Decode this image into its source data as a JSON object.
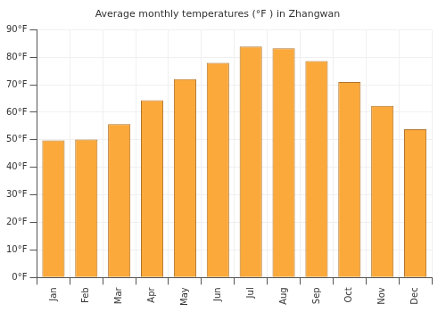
{
  "chart_data": {
    "type": "bar",
    "title": "Average monthly temperatures (°F ) in Zhangwan",
    "categories": [
      "Jan",
      "Feb",
      "Mar",
      "Apr",
      "May",
      "Jun",
      "Jul",
      "Aug",
      "Sep",
      "Oct",
      "Nov",
      "Dec"
    ],
    "values": [
      49.8,
      50.1,
      55.7,
      64.3,
      72,
      77.9,
      83.8,
      83.2,
      78.6,
      71,
      62.3,
      53.8
    ],
    "color": "#fba93a",
    "ylim": [
      0,
      90
    ],
    "yticks": [
      {
        "value": 0,
        "label": "0°F"
      },
      {
        "value": 10,
        "label": "10°F"
      },
      {
        "value": 20,
        "label": "20°F"
      },
      {
        "value": 30,
        "label": "30°F"
      },
      {
        "value": 40,
        "label": "40°F"
      },
      {
        "value": 50,
        "label": "50°F"
      },
      {
        "value": 60,
        "label": "60°F"
      },
      {
        "value": 70,
        "label": "70°F"
      },
      {
        "value": 80,
        "label": "80°F"
      },
      {
        "value": 90,
        "label": "90°F"
      }
    ],
    "grid": true
  }
}
